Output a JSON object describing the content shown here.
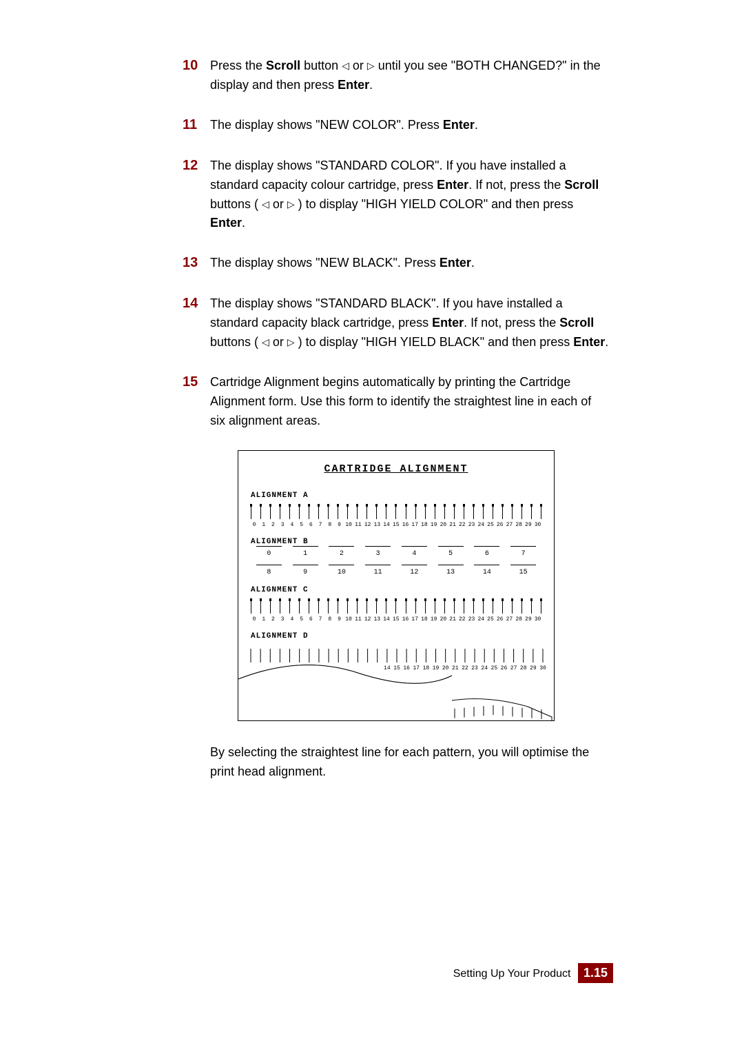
{
  "steps": [
    {
      "num": "10",
      "html": "Press the <b>Scroll</b> button  <span class='tri'>◁</span> or <span class='tri'>▷</span>  until you see \"BOTH CHANGED?\" in the display and then press <b>Enter</b>."
    },
    {
      "num": "11",
      "html": "The display shows \"NEW COLOR\". Press <b>Enter</b>."
    },
    {
      "num": "12",
      "html": "The display shows \"STANDARD COLOR\". If you have installed a standard capacity colour cartridge, press <b>Enter</b>. If not, press the <b>Scroll</b> buttons ( <span class='tri'>◁</span> or <span class='tri'>▷</span> ) to display \"HIGH YIELD COLOR\" and then press <b>Enter</b>."
    },
    {
      "num": "13",
      "html": "The display shows \"NEW BLACK\". Press <b>Enter</b>."
    },
    {
      "num": "14",
      "html": "The display shows \"STANDARD BLACK\". If you have installed a standard capacity black cartridge, press <b>Enter</b>. If not, press the <b>Scroll</b> buttons (  <span class='tri'>◁</span> or <span class='tri'>▷</span>  ) to display \"HIGH YIELD BLACK\" and then press <b>Enter</b>."
    },
    {
      "num": "15",
      "html": "Cartridge Alignment begins automatically by printing the Cartridge Alignment form. Use this form to identify the straightest line in each of six alignment areas."
    }
  ],
  "figure": {
    "title": "CARTRIDGE  ALIGNMENT",
    "sections": {
      "a": {
        "label": "ALIGNMENT A",
        "range": [
          0,
          30
        ]
      },
      "b": {
        "label": "ALIGNMENT B",
        "row1": [
          0,
          1,
          2,
          3,
          4,
          5,
          6,
          7
        ],
        "row2": [
          8,
          9,
          10,
          11,
          12,
          13,
          14,
          15
        ]
      },
      "c": {
        "label": "ALIGNMENT C",
        "range": [
          0,
          30
        ]
      },
      "d": {
        "label": "ALIGNMENT D",
        "visible_nums": [
          14,
          15,
          16,
          17,
          18,
          19,
          20,
          21,
          22,
          23,
          24,
          25,
          26,
          27,
          28,
          29,
          30
        ]
      }
    }
  },
  "after_figure": "By selecting the straightest line for each pattern, you will optimise the print head alignment.",
  "footer": {
    "text": "Setting Up Your Product",
    "page": "1.15"
  },
  "colors": {
    "accent": "#8a0000",
    "text": "#000000",
    "bg": "#ffffff"
  }
}
